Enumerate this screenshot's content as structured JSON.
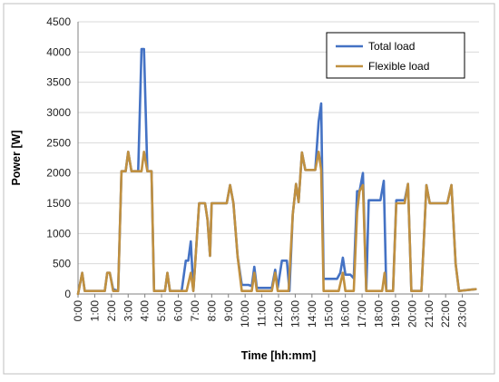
{
  "chart_data": {
    "type": "line",
    "title": "",
    "xlabel": "Time [hh:mm]",
    "ylabel": "Power [W]",
    "ylim": [
      0,
      4500
    ],
    "yticks": [
      0,
      500,
      1000,
      1500,
      2000,
      2500,
      3000,
      3500,
      4000,
      4500
    ],
    "xlim": [
      0,
      24
    ],
    "xticks": [
      "0:00",
      "1:00",
      "2:00",
      "3:00",
      "4:00",
      "5:00",
      "6:00",
      "7:00",
      "8:00",
      "9:00",
      "10:00",
      "11:00",
      "12:00",
      "13:00",
      "14:00",
      "15:00",
      "16:00",
      "17:00",
      "18:00",
      "19:00",
      "20:00",
      "21:00",
      "22:00",
      "23:00"
    ],
    "grid": "horizontal",
    "legend_position": "top-right",
    "x_unit": "hours",
    "series": [
      {
        "name": "Total load",
        "color": "#4472C4",
        "points": [
          [
            0,
            0
          ],
          [
            0.25,
            350
          ],
          [
            0.4,
            50
          ],
          [
            1.6,
            50
          ],
          [
            1.75,
            350
          ],
          [
            1.9,
            350
          ],
          [
            2.1,
            80
          ],
          [
            2.4,
            50
          ],
          [
            2.6,
            2030
          ],
          [
            2.85,
            2030
          ],
          [
            3.0,
            2350
          ],
          [
            3.2,
            2030
          ],
          [
            3.6,
            2030
          ],
          [
            3.8,
            4050
          ],
          [
            3.95,
            4050
          ],
          [
            4.15,
            2030
          ],
          [
            4.4,
            2030
          ],
          [
            4.55,
            50
          ],
          [
            5.2,
            50
          ],
          [
            5.35,
            350
          ],
          [
            5.5,
            50
          ],
          [
            6.2,
            50
          ],
          [
            6.45,
            550
          ],
          [
            6.6,
            550
          ],
          [
            6.75,
            870
          ],
          [
            6.9,
            50
          ],
          [
            7.25,
            1500
          ],
          [
            7.6,
            1500
          ],
          [
            7.75,
            1230
          ],
          [
            7.9,
            630
          ],
          [
            8.0,
            1500
          ],
          [
            8.9,
            1500
          ],
          [
            9.1,
            1800
          ],
          [
            9.3,
            1500
          ],
          [
            9.55,
            620
          ],
          [
            9.8,
            150
          ],
          [
            10.2,
            150
          ],
          [
            10.4,
            130
          ],
          [
            10.55,
            450
          ],
          [
            10.7,
            100
          ],
          [
            11.6,
            100
          ],
          [
            11.8,
            400
          ],
          [
            11.95,
            100
          ],
          [
            12.2,
            550
          ],
          [
            12.5,
            550
          ],
          [
            12.65,
            50
          ],
          [
            12.85,
            1320
          ],
          [
            13.05,
            1820
          ],
          [
            13.2,
            1520
          ],
          [
            13.4,
            2340
          ],
          [
            13.6,
            2050
          ],
          [
            14.2,
            2050
          ],
          [
            14.4,
            2850
          ],
          [
            14.55,
            3150
          ],
          [
            14.7,
            250
          ],
          [
            15.5,
            250
          ],
          [
            15.7,
            350
          ],
          [
            15.85,
            600
          ],
          [
            16.0,
            320
          ],
          [
            16.3,
            320
          ],
          [
            16.5,
            260
          ],
          [
            16.7,
            1700
          ],
          [
            16.85,
            1700
          ],
          [
            17.05,
            2000
          ],
          [
            17.25,
            50
          ],
          [
            17.4,
            1550
          ],
          [
            17.6,
            1550
          ],
          [
            18.1,
            1550
          ],
          [
            18.3,
            1870
          ],
          [
            18.45,
            50
          ],
          [
            18.85,
            50
          ],
          [
            19.05,
            1550
          ],
          [
            19.55,
            1550
          ],
          [
            19.75,
            1820
          ],
          [
            19.95,
            50
          ],
          [
            20.55,
            50
          ],
          [
            20.7,
            900
          ],
          [
            20.85,
            1800
          ],
          [
            21.05,
            1500
          ],
          [
            22.1,
            1500
          ],
          [
            22.35,
            1800
          ],
          [
            22.6,
            500
          ],
          [
            22.8,
            50
          ],
          [
            23.8,
            80
          ]
        ]
      },
      {
        "name": "Flexible load",
        "color": "#C09040",
        "points": [
          [
            0,
            0
          ],
          [
            0.25,
            350
          ],
          [
            0.4,
            50
          ],
          [
            1.6,
            50
          ],
          [
            1.75,
            350
          ],
          [
            1.9,
            350
          ],
          [
            2.1,
            50
          ],
          [
            2.4,
            50
          ],
          [
            2.6,
            2030
          ],
          [
            2.85,
            2030
          ],
          [
            3.0,
            2350
          ],
          [
            3.2,
            2030
          ],
          [
            3.6,
            2030
          ],
          [
            3.8,
            2030
          ],
          [
            3.95,
            2350
          ],
          [
            4.15,
            2030
          ],
          [
            4.4,
            2030
          ],
          [
            4.55,
            50
          ],
          [
            5.2,
            50
          ],
          [
            5.35,
            350
          ],
          [
            5.5,
            50
          ],
          [
            6.5,
            50
          ],
          [
            6.75,
            350
          ],
          [
            6.9,
            50
          ],
          [
            7.25,
            1500
          ],
          [
            7.6,
            1500
          ],
          [
            7.75,
            1230
          ],
          [
            7.9,
            630
          ],
          [
            8.0,
            1500
          ],
          [
            8.9,
            1500
          ],
          [
            9.1,
            1800
          ],
          [
            9.3,
            1500
          ],
          [
            9.55,
            620
          ],
          [
            9.8,
            50
          ],
          [
            10.4,
            50
          ],
          [
            10.55,
            350
          ],
          [
            10.7,
            50
          ],
          [
            11.6,
            50
          ],
          [
            11.8,
            350
          ],
          [
            11.95,
            50
          ],
          [
            12.6,
            50
          ],
          [
            12.85,
            1320
          ],
          [
            13.05,
            1820
          ],
          [
            13.2,
            1520
          ],
          [
            13.4,
            2340
          ],
          [
            13.6,
            2050
          ],
          [
            14.2,
            2050
          ],
          [
            14.4,
            2350
          ],
          [
            14.55,
            2050
          ],
          [
            14.7,
            50
          ],
          [
            15.6,
            50
          ],
          [
            15.85,
            350
          ],
          [
            16.0,
            50
          ],
          [
            16.5,
            50
          ],
          [
            16.7,
            1350
          ],
          [
            16.85,
            1700
          ],
          [
            17.05,
            1800
          ],
          [
            17.25,
            50
          ],
          [
            17.4,
            50
          ],
          [
            18.2,
            50
          ],
          [
            18.35,
            350
          ],
          [
            18.45,
            50
          ],
          [
            18.85,
            50
          ],
          [
            19.05,
            1500
          ],
          [
            19.55,
            1500
          ],
          [
            19.75,
            1820
          ],
          [
            19.95,
            50
          ],
          [
            20.55,
            50
          ],
          [
            20.7,
            900
          ],
          [
            20.85,
            1800
          ],
          [
            21.05,
            1500
          ],
          [
            22.1,
            1500
          ],
          [
            22.35,
            1800
          ],
          [
            22.6,
            500
          ],
          [
            22.8,
            50
          ],
          [
            23.8,
            80
          ]
        ]
      }
    ]
  }
}
